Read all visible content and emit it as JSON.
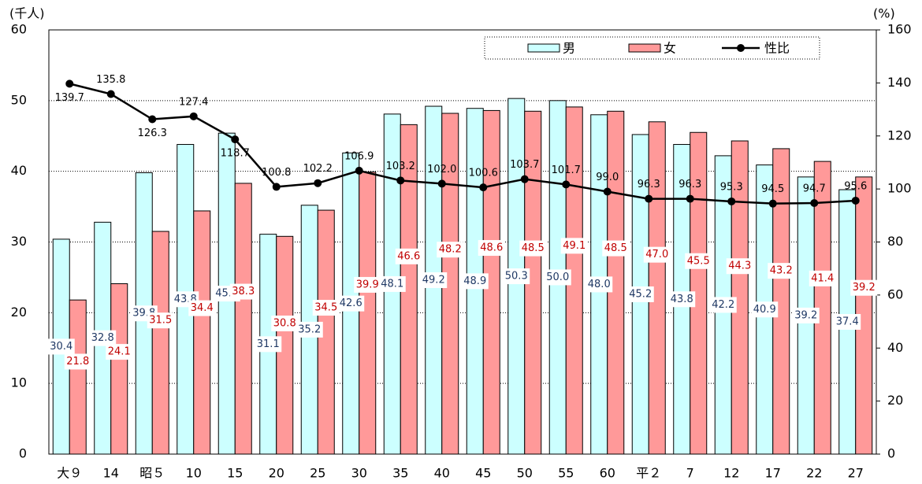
{
  "chart_data": {
    "type": "bar-line",
    "y_label": "(千人)",
    "y2_label": "(%)",
    "categories": [
      "大９",
      "14",
      "昭５",
      "10",
      "15",
      "20",
      "25",
      "30",
      "35",
      "40",
      "45",
      "50",
      "55",
      "60",
      "平２",
      "7",
      "12",
      "17",
      "22",
      "27"
    ],
    "series": [
      {
        "name": "男",
        "color": "#ccffff",
        "label_color": "#1f3864",
        "type": "bar",
        "values": [
          30.4,
          32.8,
          39.8,
          43.8,
          45.4,
          31.1,
          35.2,
          42.6,
          48.1,
          49.2,
          48.9,
          50.3,
          50.0,
          48.0,
          45.2,
          43.8,
          42.2,
          40.9,
          39.2,
          37.4
        ],
        "value_labels": [
          "30.4",
          "32.8",
          "39.8",
          "43.8",
          "45.4",
          "31.1",
          "35.2",
          "42.6",
          "48.1",
          "49.2",
          "48.9",
          "50.3",
          "50.0",
          "48.0",
          "45.2",
          "43.8",
          "42.2",
          "40.9",
          "39.2",
          "37.4"
        ]
      },
      {
        "name": "女",
        "color": "#ff9999",
        "label_color": "#c00000",
        "type": "bar",
        "values": [
          21.8,
          24.1,
          31.5,
          34.4,
          38.3,
          30.8,
          34.5,
          39.9,
          46.6,
          48.2,
          48.6,
          48.5,
          49.1,
          48.5,
          47.0,
          45.5,
          44.3,
          43.2,
          41.4,
          39.2
        ],
        "value_labels": [
          "21.8",
          "24.1",
          "31.5",
          "34.4",
          "38.3",
          "30.8",
          "34.5",
          "39.9",
          "46.6",
          "48.2",
          "48.6",
          "48.5",
          "49.1",
          "48.5",
          "47.0",
          "45.5",
          "44.3",
          "43.2",
          "41.4",
          "39.2"
        ]
      },
      {
        "name": "性比",
        "color": "#000000",
        "label_color": "#000000",
        "type": "line",
        "axis": "y2",
        "values": [
          139.7,
          135.8,
          126.3,
          127.4,
          118.7,
          100.8,
          102.2,
          106.9,
          103.2,
          102.0,
          100.6,
          103.7,
          101.7,
          99.0,
          96.3,
          96.3,
          95.3,
          94.5,
          94.7,
          95.6
        ],
        "value_labels": [
          "139.7",
          "135.8",
          "126.3",
          "127.4",
          "118.7",
          "100.8",
          "102.2",
          "106.9",
          "103.2",
          "102.0",
          "100.6",
          "103.7",
          "101.7",
          "99.0",
          "96.3",
          "96.3",
          "95.3",
          "94.5",
          "94.7",
          "95.6"
        ]
      }
    ],
    "ylim": [
      0,
      60
    ],
    "yticks": [
      0,
      10,
      20,
      30,
      40,
      50,
      60
    ],
    "y2lim": [
      0,
      160
    ],
    "y2ticks": [
      0,
      20,
      40,
      60,
      80,
      100,
      120,
      140,
      160
    ],
    "grid": true,
    "legend": "top-right"
  }
}
